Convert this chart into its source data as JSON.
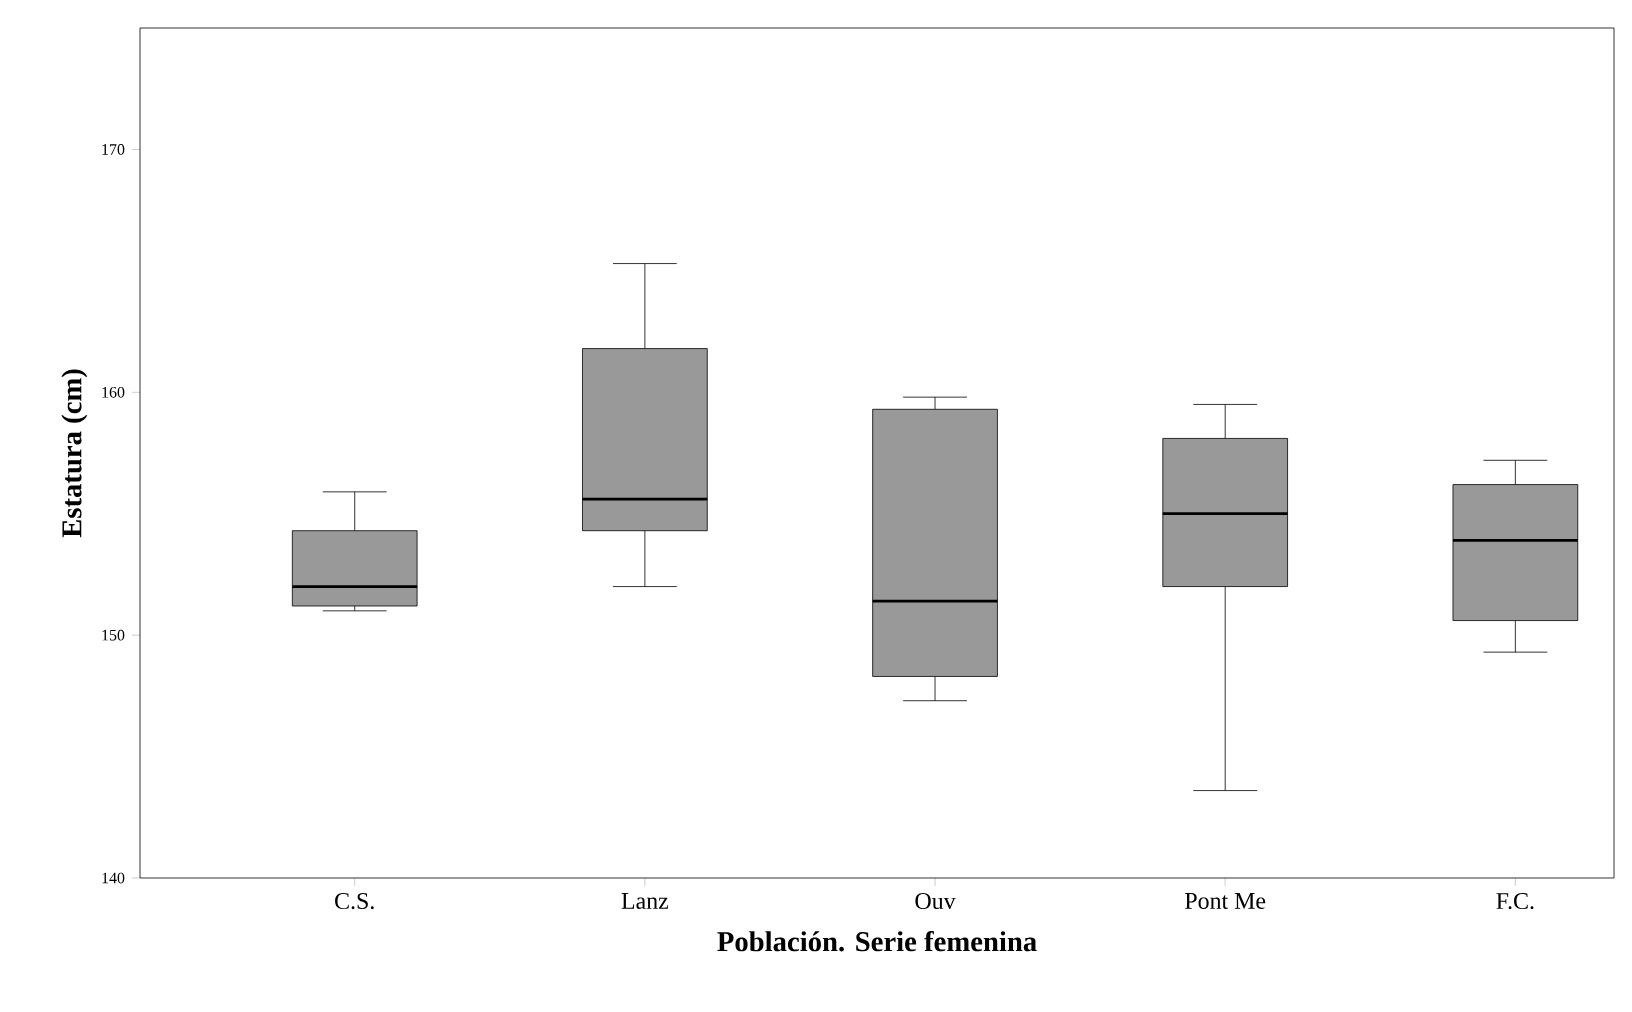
{
  "chart_data": {
    "type": "box",
    "xlabel": "Población. Serie femenina",
    "ylabel": "Estatura (cm)",
    "categories": [
      "C.S.",
      "Lanz",
      "Ouv",
      "Pont Me",
      "F.C."
    ],
    "color": "#999999",
    "boxes": [
      {
        "low": 151.0,
        "q1": 151.2,
        "median": 152.0,
        "q3": 154.3,
        "high": 155.9
      },
      {
        "low": 152.0,
        "q1": 154.3,
        "median": 155.6,
        "q3": 161.8,
        "high": 165.3
      },
      {
        "low": 147.3,
        "q1": 148.3,
        "median": 151.4,
        "q3": 159.3,
        "high": 159.8
      },
      {
        "low": 143.6,
        "q1": 152.0,
        "median": 155.0,
        "q3": 158.1,
        "high": 159.5
      },
      {
        "low": 149.3,
        "q1": 150.6,
        "median": 153.9,
        "q3": 156.2,
        "high": 157.2
      }
    ],
    "ylim": [
      140,
      175
    ],
    "yticks": [
      140,
      150,
      160,
      170
    ]
  }
}
